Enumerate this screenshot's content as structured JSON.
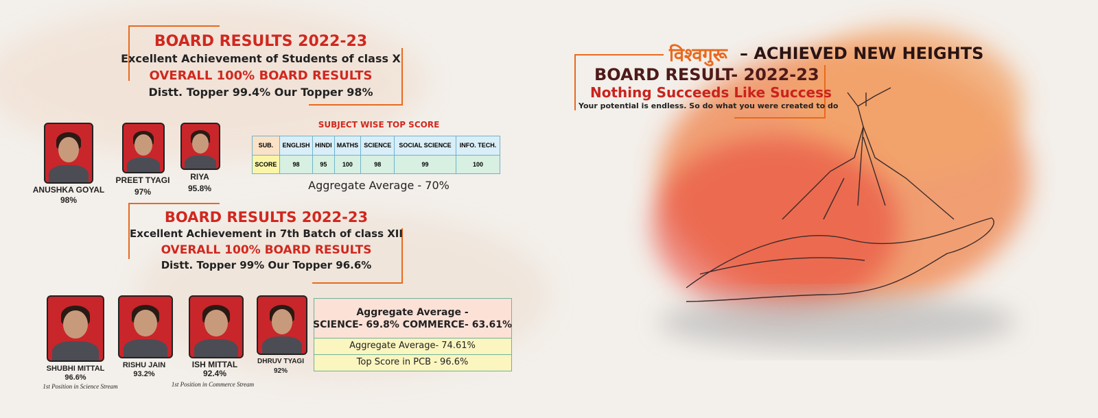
{
  "left": {
    "class_x": {
      "title": "BOARD RESULTS 2022-23",
      "subtitle": "Excellent Achievement of Students of class X",
      "overall": "OVERALL 100% BOARD RESULTS",
      "toppers": "Distt. Topper 99.4%  Our Topper 98%"
    },
    "class_x_students": [
      {
        "name": "ANUSHKA GOYAL",
        "score": "98%"
      },
      {
        "name": "PREET TYAGI",
        "score": "97%"
      },
      {
        "name": "RIYA",
        "score": "95.8%"
      }
    ],
    "subject_table": {
      "title": "SUBJECT WISE TOP SCORE",
      "header": [
        "SUB.",
        "ENGLISH",
        "HINDI",
        "MATHS",
        "SCIENCE",
        "SOCIAL SCIENCE",
        "INFO. TECH."
      ],
      "row": [
        "SCORE",
        "98",
        "95",
        "100",
        "98",
        "99",
        "100"
      ]
    },
    "class_x_aggregate": "Aggregate Average  - 70%",
    "class_xii": {
      "title": "BOARD RESULTS 2022-23",
      "subtitle": "Excellent Achievement in 7th Batch of class XII",
      "overall": "OVERALL 100% BOARD RESULTS",
      "toppers": "Distt. Topper 99%  Our Topper 96.6%"
    },
    "class_xii_students": [
      {
        "name": "SHUBHI MITTAL",
        "score": "96.6%",
        "note": "1st Position in Science Stream"
      },
      {
        "name": "RISHU JAIN",
        "score": "93.2%"
      },
      {
        "name": "ISH MITTAL",
        "score": "92.4%",
        "note": "1st Position in Commerce Stream"
      },
      {
        "name": "DHRUV TYAGI",
        "score": "92%"
      }
    ],
    "class_xii_box": {
      "heading": "Aggregate Average  -",
      "streams": "SCIENCE- 69.8%  COMMERCE- 63.61%",
      "aggregate": "Aggregate Average- 74.61%",
      "pcb": "Top Score in PCB  - 96.6%"
    }
  },
  "right": {
    "brand": "विश्वगुरू",
    "tagline": "– ACHIEVED NEW HEIGHTS",
    "result": "BOARD RESULT- 2022-23",
    "motto": "Nothing Succeeds Like Success",
    "quote": "Your potential is endless. So do what you were created to do"
  }
}
